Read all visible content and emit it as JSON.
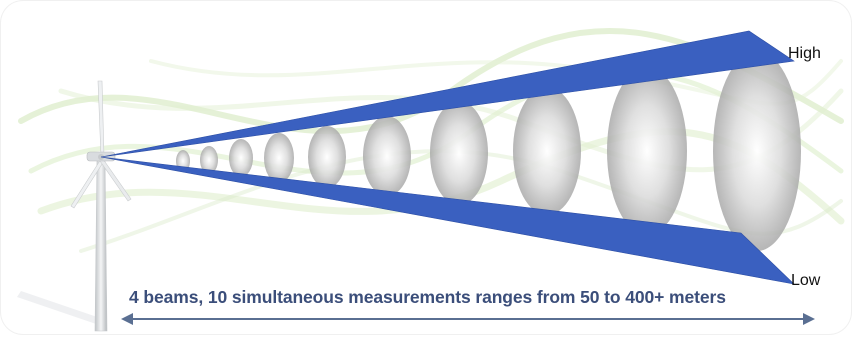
{
  "diagram": {
    "beam_color": "#3a60c0",
    "ellipse_count": 10,
    "labels": {
      "high": "High",
      "low": "Low"
    },
    "caption": "4 beams, 10 simultaneous measurements ranges from 50 to 400+ meters",
    "caption_color": "#3b4e7a",
    "arrow_icon": "double-headed-arrow",
    "turbine_icon": "wind-turbine"
  }
}
